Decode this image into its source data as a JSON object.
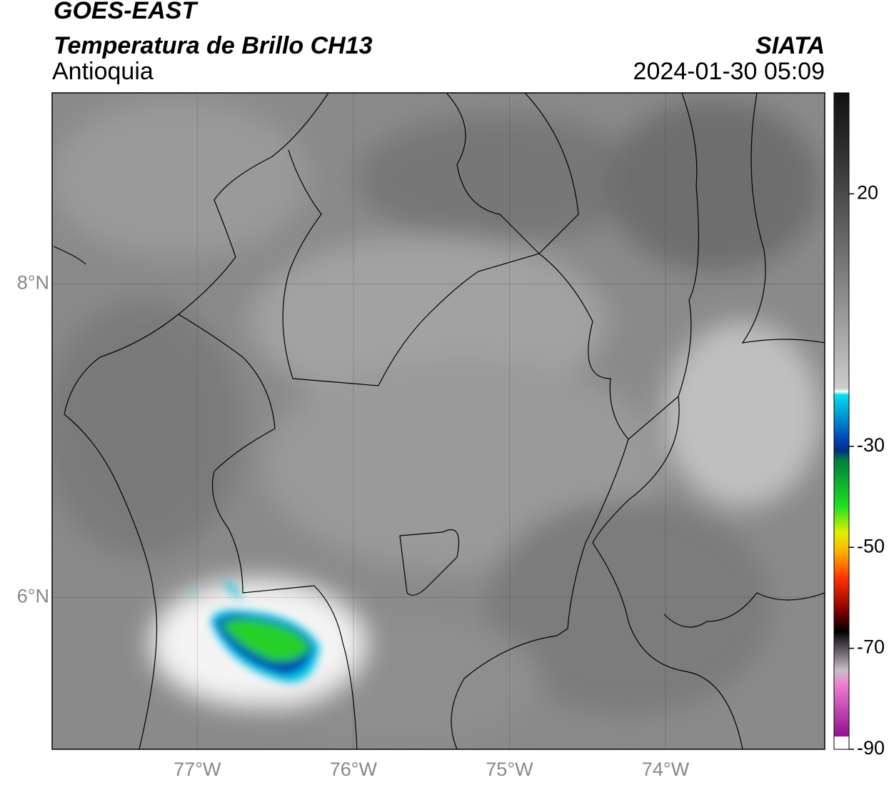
{
  "header": {
    "title": "GOES-EAST",
    "subtitle": "Temperatura de Brillo CH13",
    "region": "Antioquia",
    "source": "SIATA",
    "datetime": "2024-01-30 05:09"
  },
  "map": {
    "xlim": [
      -77.93,
      -72.98
    ],
    "ylim": [
      5.03,
      9.22
    ],
    "xticks": [
      {
        "value": -77,
        "label": "77°W"
      },
      {
        "value": -76,
        "label": "76°W"
      },
      {
        "value": -75,
        "label": "75°W"
      },
      {
        "value": -74,
        "label": "74°W"
      }
    ],
    "yticks": [
      {
        "value": 8,
        "label": "8°N"
      },
      {
        "value": 6,
        "label": "6°N"
      }
    ],
    "grid": true
  },
  "colorbar": {
    "lim": [
      -90,
      40
    ],
    "ticks": [
      20,
      -30,
      -50,
      -70,
      -90
    ]
  }
}
